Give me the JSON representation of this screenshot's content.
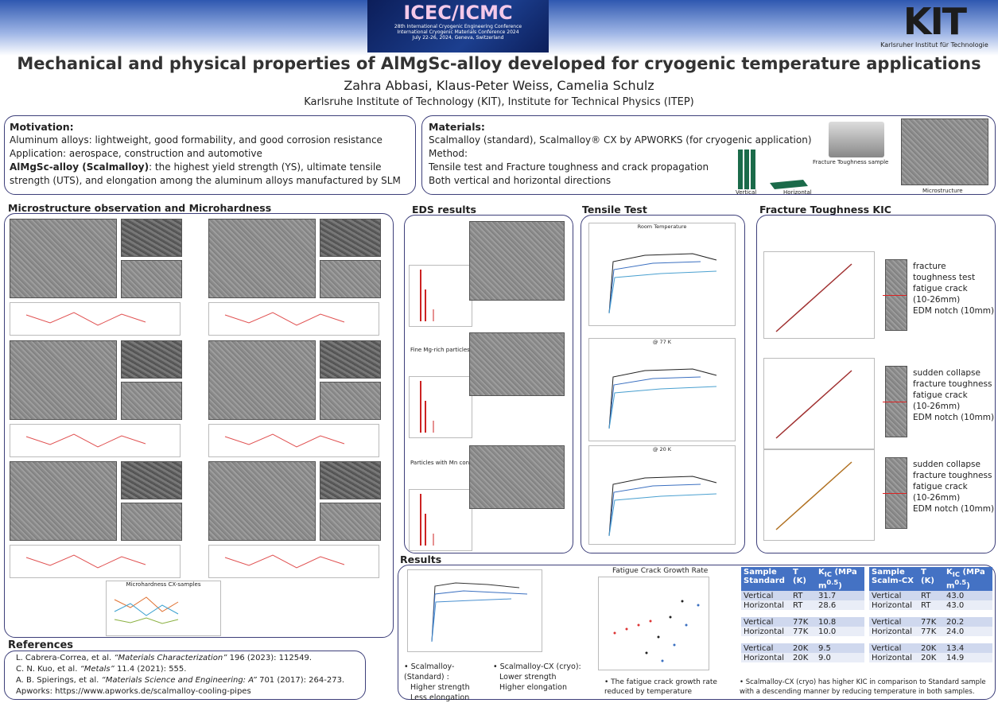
{
  "header": {
    "conference": {
      "name": "ICEC/ICMC",
      "lines": [
        "28th International Cryogenic Engineering Conference",
        "International Cryogenic Materials Conference 2024",
        "July 22-26, 2024, Geneva, Switzerland"
      ]
    },
    "institute_logo": {
      "mark": "KIT",
      "name": "Karlsruher Institut für Technologie"
    },
    "title": "Mechanical and physical properties of AlMgSc-alloy developed for cryogenic temperature applications",
    "authors": "Zahra Abbasi, Klaus-Peter Weiss, Camelia Schulz",
    "affiliation": "Karlsruhe Institute of Technology (KIT), Institute for Technical Physics (ITEP)"
  },
  "motivation": {
    "heading": "Motivation:",
    "lines": [
      "Aluminum alloys: lightweight, good formability, and good corrosion resistance",
      "Application: aerospace, construction and automotive"
    ],
    "highlight": {
      "bold": "AlMgSc-alloy (Scalmalloy)",
      "text": ": the highest yield strength (YS), ultimate tensile strength (UTS), and elongation among the aluminum alloys manufactured by SLM"
    }
  },
  "materials": {
    "heading": "Materials:",
    "lines": [
      "Scalmalloy (standard), Scalmalloy® CX by APWORKS (for cryogenic application)",
      "Method:",
      "Tensile test  and Fracture toughness and crack propagation",
      "Both vertical and horizontal directions"
    ],
    "figure_labels": {
      "sample": "Fracture Toughness sample",
      "vertical": "Vertical",
      "horizontal": "Horizontal",
      "microstructure": "Microstructure"
    }
  },
  "microstructure": {
    "heading": "Microstructure observation and Microhardness",
    "hardness_chart_title": "Microhardness CX-samples"
  },
  "eds": {
    "heading": "EDS results",
    "labels": [
      "Fine Mg-rich particles",
      "Particles with Mn content"
    ]
  },
  "tensile": {
    "heading": "Tensile Test",
    "chart_titles": [
      "Room Temperature",
      "@ 77 K",
      "@ 20 K"
    ]
  },
  "fracture": {
    "heading": "Fracture Toughness KIC",
    "annotations": [
      [
        "fracture",
        "toughness test",
        "fatigue crack",
        "(10-26mm)",
        "EDM notch (10mm)"
      ],
      [
        "sudden collapse",
        "fracture toughness",
        "fatigue crack",
        "(10-26mm)",
        "EDM notch (10mm)"
      ],
      [
        "sudden collapse",
        "fracture toughness",
        "fatigue crack",
        "(10-26mm)",
        "EDM notch (10mm)"
      ]
    ]
  },
  "results": {
    "heading": "Results",
    "standard": {
      "title": "Scalmalloy-(Standard) :",
      "lines": [
        "Higher strength",
        "Less elongation"
      ]
    },
    "cx": {
      "title": "Scalmalloy-CX (cryo):",
      "lines": [
        "Lower strength",
        "Higher elongation"
      ]
    },
    "fatigue_title": "Fatigue Crack Growth Rate",
    "fatigue_note": "The fatigue crack growth rate reduced by temperature",
    "kic_note": "Scalmalloy-CX (cryo) has higher KIC in comparison to Standard sample with a descending manner by reducing temperature in both samples.",
    "tables": [
      {
        "header": [
          "Sample Standard",
          "T (K)"
        ],
        "kic": {
          "symbol": "K",
          "sub": "IC",
          "unit": "(MPa m",
          "exp": "0.5",
          "close": ")"
        },
        "groups": [
          [
            [
              "Vertical",
              "RT",
              "31.7"
            ],
            [
              "Horizontal",
              "RT",
              "28.6"
            ]
          ],
          [
            [
              "Vertical",
              "77K",
              "10.8"
            ],
            [
              "Horizontal",
              "77K",
              "10.0"
            ]
          ],
          [
            [
              "Vertical",
              "20K",
              "9.5"
            ],
            [
              "Horizontal",
              "20K",
              "9.0"
            ]
          ]
        ]
      },
      {
        "header": [
          "Sample Scalm-CX",
          "T (K)"
        ],
        "kic": {
          "symbol": "K",
          "sub": "IC",
          "unit": "(MPa m",
          "exp": "0.5",
          "close": ")"
        },
        "groups": [
          [
            [
              "Vertical",
              "RT",
              "43.0"
            ],
            [
              "Horizontal",
              "RT",
              "43.0"
            ]
          ],
          [
            [
              "Vertical",
              "77K",
              "20.2"
            ],
            [
              "Horizontal",
              "77K",
              "24.0"
            ]
          ],
          [
            [
              "Vertical",
              "20K",
              "13.4"
            ],
            [
              "Horizontal",
              "20K",
              "14.9"
            ]
          ]
        ]
      }
    ]
  },
  "references": {
    "heading": "References",
    "items": [
      {
        "authors": "L. Cabrera-Correa, et al. ",
        "journal": "“Materials Characterization”",
        "details": " 196 (2023): 112549."
      },
      {
        "authors": "C. N. Kuo, et al. ",
        "journal": "“Metals”",
        "details": " 11.4 (2021): 555."
      },
      {
        "authors": "A. B. Spierings, et al. ",
        "journal": "“Materials Science and Engineering: A”",
        "details": " 701 (2017): 264-273."
      }
    ],
    "link": "Apworks: https://www.apworks.de/scalmalloy-cooling-pipes"
  }
}
